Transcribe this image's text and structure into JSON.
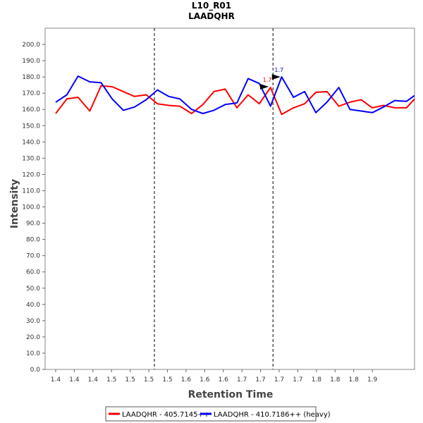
{
  "chart_data": {
    "type": "line",
    "title": "L10_R01",
    "subtitle": "LAADQHR",
    "xlabel": "Retention Time",
    "ylabel": "Intensity",
    "xlim": [
      1.367,
      1.962
    ],
    "ylim": [
      0,
      210
    ],
    "y_ticks": [
      0,
      10,
      20,
      30,
      40,
      50,
      60,
      70,
      80,
      90,
      100,
      110,
      120,
      130,
      140,
      150,
      160,
      170,
      180,
      190,
      200
    ],
    "x_ticks": [
      1.384,
      1.414,
      1.444,
      1.474,
      1.504,
      1.534,
      1.564,
      1.594,
      1.624,
      1.654,
      1.684,
      1.714,
      1.744,
      1.774,
      1.804,
      1.834,
      1.864,
      1.894
    ],
    "x_tick_labels": [
      "1.4",
      "1.4",
      "1.4",
      "1.5",
      "1.5",
      "1.5",
      "1.5",
      "1.6",
      "1.6",
      "1.6",
      "1.7",
      "1.7",
      "1.7",
      "1.7",
      "1.8",
      "1.8",
      "1.8",
      "1.9"
    ],
    "grid": false,
    "legend_position": "bottom",
    "vertical_markers": [
      1.543,
      1.734
    ],
    "series": [
      {
        "name": "LAADQHR - 405.7145++",
        "color": "#ff0000",
        "x": [
          1.384,
          1.402,
          1.42,
          1.439,
          1.457,
          1.475,
          1.493,
          1.511,
          1.53,
          1.548,
          1.566,
          1.584,
          1.603,
          1.621,
          1.639,
          1.657,
          1.676,
          1.694,
          1.712,
          1.73,
          1.748,
          1.767,
          1.785,
          1.803,
          1.821,
          1.84,
          1.858,
          1.876,
          1.894,
          1.912,
          1.93,
          1.949,
          1.962
        ],
        "values": [
          157.5,
          166.5,
          167.5,
          159.0,
          174.5,
          174.0,
          171.0,
          168.0,
          169.0,
          163.5,
          162.5,
          162.0,
          157.5,
          163.0,
          171.0,
          172.5,
          161.0,
          169.0,
          163.5,
          173.5,
          157.0,
          161.0,
          163.5,
          170.5,
          171.0,
          162.0,
          164.5,
          166.0,
          161.0,
          162.5,
          161.0,
          161.0,
          166.5
        ]
      },
      {
        "name": "LAADQHR - 410.7186++ (heavy)",
        "color": "#0000ff",
        "x": [
          1.384,
          1.402,
          1.42,
          1.439,
          1.457,
          1.475,
          1.493,
          1.511,
          1.53,
          1.548,
          1.566,
          1.584,
          1.603,
          1.621,
          1.639,
          1.657,
          1.676,
          1.694,
          1.712,
          1.73,
          1.748,
          1.767,
          1.785,
          1.803,
          1.821,
          1.84,
          1.858,
          1.876,
          1.894,
          1.912,
          1.93,
          1.949,
          1.962
        ],
        "values": [
          164.5,
          169.0,
          180.5,
          177.0,
          176.5,
          166.5,
          159.5,
          161.5,
          166.0,
          172.0,
          168.0,
          166.5,
          160.0,
          157.5,
          159.5,
          163.0,
          164.0,
          179.0,
          176.0,
          162.0,
          180.0,
          167.5,
          171.0,
          158.0,
          164.5,
          173.5,
          160.0,
          159.0,
          158.0,
          161.5,
          165.5,
          165.0,
          168.5
        ]
      }
    ],
    "annotations": [
      {
        "text": "1.7",
        "x": 1.727,
        "y": 174.0,
        "color": "#ff0000"
      },
      {
        "text": "1.7",
        "x": 1.746,
        "y": 180.0,
        "color": "#0000ff"
      }
    ]
  }
}
